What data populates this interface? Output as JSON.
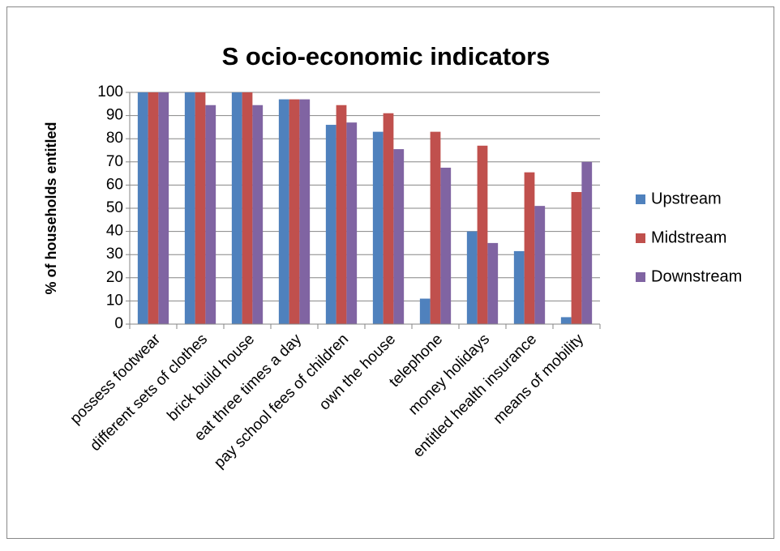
{
  "chart_data": {
    "type": "bar",
    "title": "S ocio-economic indicators",
    "ylabel": "% of households entitled",
    "categories": [
      "possess footwear",
      "different sets of clothes",
      "brick build house",
      "eat three times a day",
      "pay school fees of children",
      "own the house",
      "telephone",
      "money holidays",
      "entitled health insurance",
      "means of mobility"
    ],
    "series": [
      {
        "name": "Upstream",
        "color": "#4f81bd",
        "values": [
          100,
          100,
          100,
          97,
          86,
          83,
          11,
          40,
          31.5,
          3
        ]
      },
      {
        "name": "Midstream",
        "color": "#c0504d",
        "values": [
          100,
          100,
          100,
          97,
          94.5,
          91,
          83,
          77,
          65.5,
          57
        ]
      },
      {
        "name": "Downstream",
        "color": "#8064a2",
        "values": [
          100,
          94.5,
          94.5,
          97,
          87,
          75.5,
          67.5,
          35,
          51,
          70
        ]
      }
    ],
    "ylim": [
      0,
      100
    ],
    "yticks": [
      0,
      10,
      20,
      30,
      40,
      50,
      60,
      70,
      80,
      90,
      100
    ],
    "grid": true,
    "legend": "right"
  }
}
